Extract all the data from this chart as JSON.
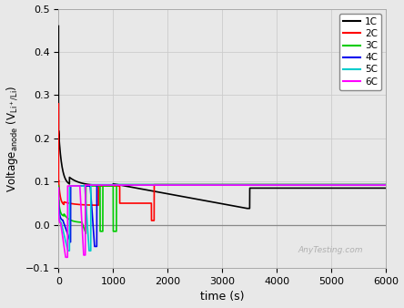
{
  "title": "",
  "xlabel": "time (s)",
  "ylabel": "Voltage$_{anode}$ (V$_{Li^+/Li}$)",
  "xlim": [
    0,
    6000
  ],
  "ylim": [
    -0.1,
    0.5
  ],
  "yticks": [
    -0.1,
    0.0,
    0.1,
    0.2,
    0.3,
    0.4,
    0.5
  ],
  "xticks": [
    0,
    1000,
    2000,
    3000,
    4000,
    5000,
    6000
  ],
  "watermark": "AnyTesting.com",
  "bg_color": "#e8e8e8",
  "legend": [
    "1C",
    "2C",
    "3C",
    "4C",
    "5C",
    "6C"
  ],
  "colors": [
    "black",
    "#ff0000",
    "#00cc00",
    "#0000ee",
    "#00cccc",
    "#ff00ff"
  ],
  "linewidth": 1.2
}
